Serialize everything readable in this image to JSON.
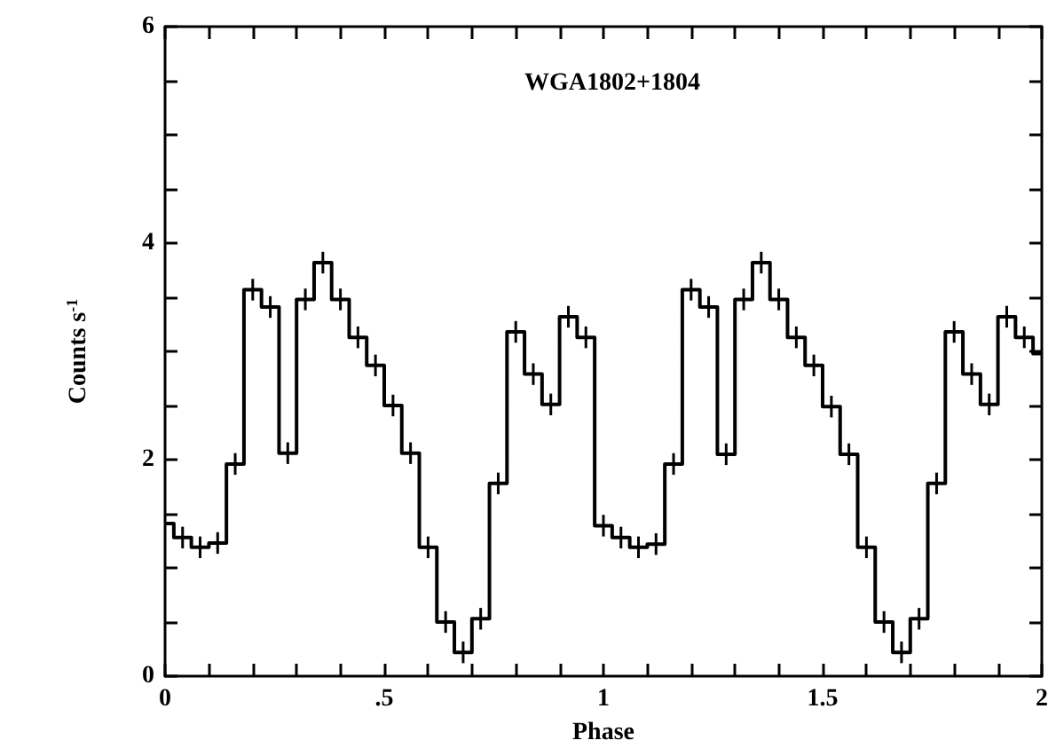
{
  "chart_data": {
    "type": "step",
    "title": "WGA1802+1804",
    "xlabel": "Phase",
    "ylabel": "Counts s$^{-1}$",
    "x": [
      0,
      0.04,
      0.08,
      0.12,
      0.16,
      0.2,
      0.24,
      0.28,
      0.32,
      0.36,
      0.4,
      0.44,
      0.48,
      0.52,
      0.56,
      0.6,
      0.64,
      0.68,
      0.72,
      0.76,
      0.8,
      0.84,
      0.88,
      0.92,
      0.96,
      1,
      1.04,
      1.08,
      1.12,
      1.16,
      1.2,
      1.24,
      1.28,
      1.32,
      1.36,
      1.4,
      1.44,
      1.48,
      1.52,
      1.56,
      1.6,
      1.64,
      1.68,
      1.72,
      1.76,
      1.8,
      1.84,
      1.88,
      1.92,
      1.96,
      2
    ],
    "series": [
      {
        "color": "#000000",
        "values": [
          1.41,
          1.28,
          1.19,
          1.23,
          1.96,
          3.57,
          3.41,
          2.06,
          3.48,
          3.82,
          3.48,
          3.13,
          2.87,
          2.5,
          2.06,
          1.19,
          0.5,
          0.22,
          0.53,
          1.78,
          3.18,
          2.79,
          2.51,
          3.32,
          3.13,
          1.39,
          1.28,
          1.19,
          1.22,
          1.96,
          3.57,
          3.41,
          2.05,
          3.48,
          3.82,
          3.48,
          3.13,
          2.87,
          2.49,
          2.05,
          1.19,
          0.5,
          0.22,
          0.53,
          1.78,
          3.18,
          2.79,
          2.51,
          3.32,
          3.13,
          2.98
        ],
        "errors": [
          null,
          0.1,
          0.1,
          0.1,
          0.1,
          0.1,
          0.1,
          0.1,
          0.1,
          0.1,
          0.1,
          0.1,
          0.1,
          0.1,
          0.1,
          0.1,
          0.1,
          0.1,
          0.1,
          0.1,
          0.1,
          0.1,
          0.1,
          0.1,
          0.1,
          0.1,
          0.1,
          0.1,
          0.1,
          0.1,
          0.1,
          0.1,
          0.1,
          0.1,
          0.1,
          0.1,
          0.1,
          0.1,
          0.1,
          0.1,
          0.1,
          0.1,
          0.1,
          0.1,
          0.1,
          0.1,
          0.1,
          0.1,
          0.1,
          0.1,
          null
        ]
      }
    ],
    "xlim": [
      0,
      2
    ],
    "xticks": [
      0,
      {
        "value": 0.1,
        "label": null
      },
      {
        "value": 0.2,
        "label": null
      },
      {
        "value": 0.3,
        "label": null
      },
      {
        "value": 0.4,
        "label": null
      },
      {
        "value": 0.5,
        "label": ".5"
      },
      {
        "value": 0.6,
        "label": null
      },
      {
        "value": 0.7,
        "label": null
      },
      {
        "value": 0.8,
        "label": null
      },
      {
        "value": 0.9,
        "label": null
      },
      1,
      {
        "value": 1.1,
        "label": null
      },
      {
        "value": 1.2,
        "label": null
      },
      {
        "value": 1.3,
        "label": null
      },
      {
        "value": 1.4,
        "label": null
      },
      1.5,
      {
        "value": 1.6,
        "label": null
      },
      {
        "value": 1.7,
        "label": null
      },
      {
        "value": 1.8,
        "label": null
      },
      {
        "value": 1.9,
        "label": null
      },
      2
    ],
    "ylim": [
      0,
      6
    ],
    "yticks": [
      0,
      {
        "value": 0.5,
        "label": null
      },
      {
        "value": 1,
        "label": null
      },
      {
        "value": 1.5,
        "label": null
      },
      2,
      {
        "value": 2.5,
        "label": null
      },
      {
        "value": 3,
        "label": null
      },
      {
        "value": 3.5,
        "label": null
      },
      4,
      {
        "value": 4.5,
        "label": null
      },
      {
        "value": 5,
        "label": null
      },
      {
        "value": 5.5,
        "label": null
      },
      6
    ]
  }
}
